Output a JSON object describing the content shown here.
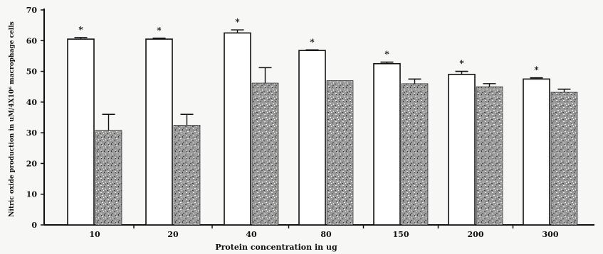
{
  "chart_data": {
    "type": "bar",
    "title": "",
    "xlabel": "Protein concentration in ug",
    "ylabel": "Nitric oxide production in uM/4X10⁶ macrophage cells",
    "ylim": [
      0,
      70
    ],
    "yticks": [
      0,
      10,
      20,
      30,
      40,
      50,
      60,
      70
    ],
    "categories": [
      "10",
      "20",
      "40",
      "80",
      "150",
      "200",
      "300"
    ],
    "legend": "none",
    "grid": false,
    "series": [
      {
        "fill": "#ffffff",
        "values": [
          60.5,
          60.5,
          62.5,
          56.8,
          52.5,
          49,
          47.5
        ],
        "errors": [
          0.5,
          0.3,
          1.0,
          0.2,
          0.5,
          1.0,
          0.4
        ],
        "annotations": [
          "*",
          "*",
          "*",
          "*",
          "*",
          "*",
          "*"
        ]
      },
      {
        "fill": "#9a9a9a",
        "values": [
          30.8,
          32.5,
          46.2,
          47,
          46,
          45,
          43.2
        ],
        "errors": [
          5.2,
          3.5,
          5.0,
          0,
          1.5,
          1.0,
          1.0
        ],
        "annotations": []
      }
    ]
  }
}
